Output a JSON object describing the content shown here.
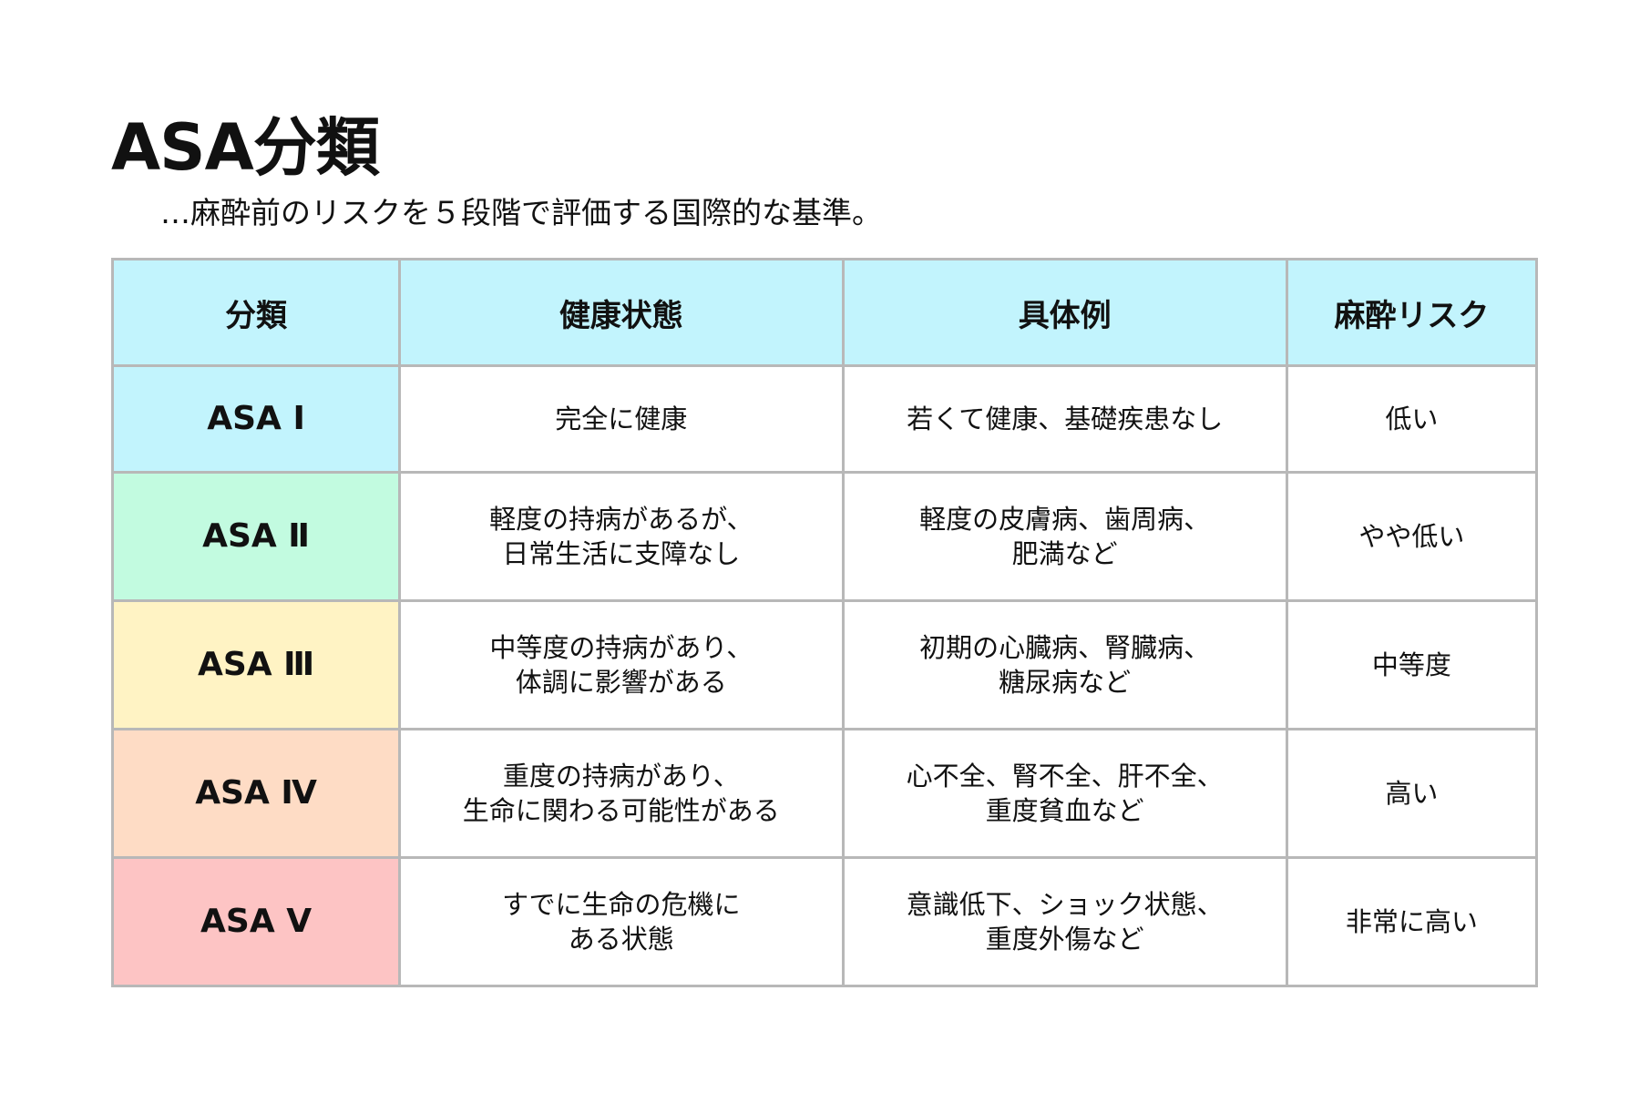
{
  "title": "ASA分類",
  "subtitle": "…麻酔前のリスクを５段階で評価する国際的な基準。",
  "table": {
    "headers": [
      "分類",
      "健康状態",
      "具体例",
      "麻酔リスク"
    ],
    "header_color": "#c2f4fd",
    "rows": [
      {
        "class": "ASA Ⅰ",
        "color": "#c2f4fd",
        "health": [
          "完全に健康"
        ],
        "examples": [
          "若くて健康、基礎疾患なし"
        ],
        "risk": "低い"
      },
      {
        "class": "ASA Ⅱ",
        "color": "#c2fbe0",
        "health": [
          "軽度の持病があるが、",
          "日常生活に支障なし"
        ],
        "examples": [
          "軽度の皮膚病、歯周病、",
          "肥満など"
        ],
        "risk": "やや低い"
      },
      {
        "class": "ASA Ⅲ",
        "color": "#fff3c4",
        "health": [
          "中等度の持病があり、",
          "体調に影響がある"
        ],
        "examples": [
          "初期の心臓病、腎臓病、",
          "糖尿病など"
        ],
        "risk": "中等度"
      },
      {
        "class": "ASA Ⅳ",
        "color": "#fedcc5",
        "health": [
          "重度の持病があり、",
          "生命に関わる可能性がある"
        ],
        "examples": [
          "心不全、腎不全、肝不全、",
          "重度貧血など"
        ],
        "risk": "高い"
      },
      {
        "class": "ASA Ⅴ",
        "color": "#fdc4c4",
        "health": [
          "すでに生命の危機に",
          "ある状態"
        ],
        "examples": [
          "意識低下、ショック状態、",
          "重度外傷など"
        ],
        "risk": "非常に高い"
      }
    ]
  }
}
